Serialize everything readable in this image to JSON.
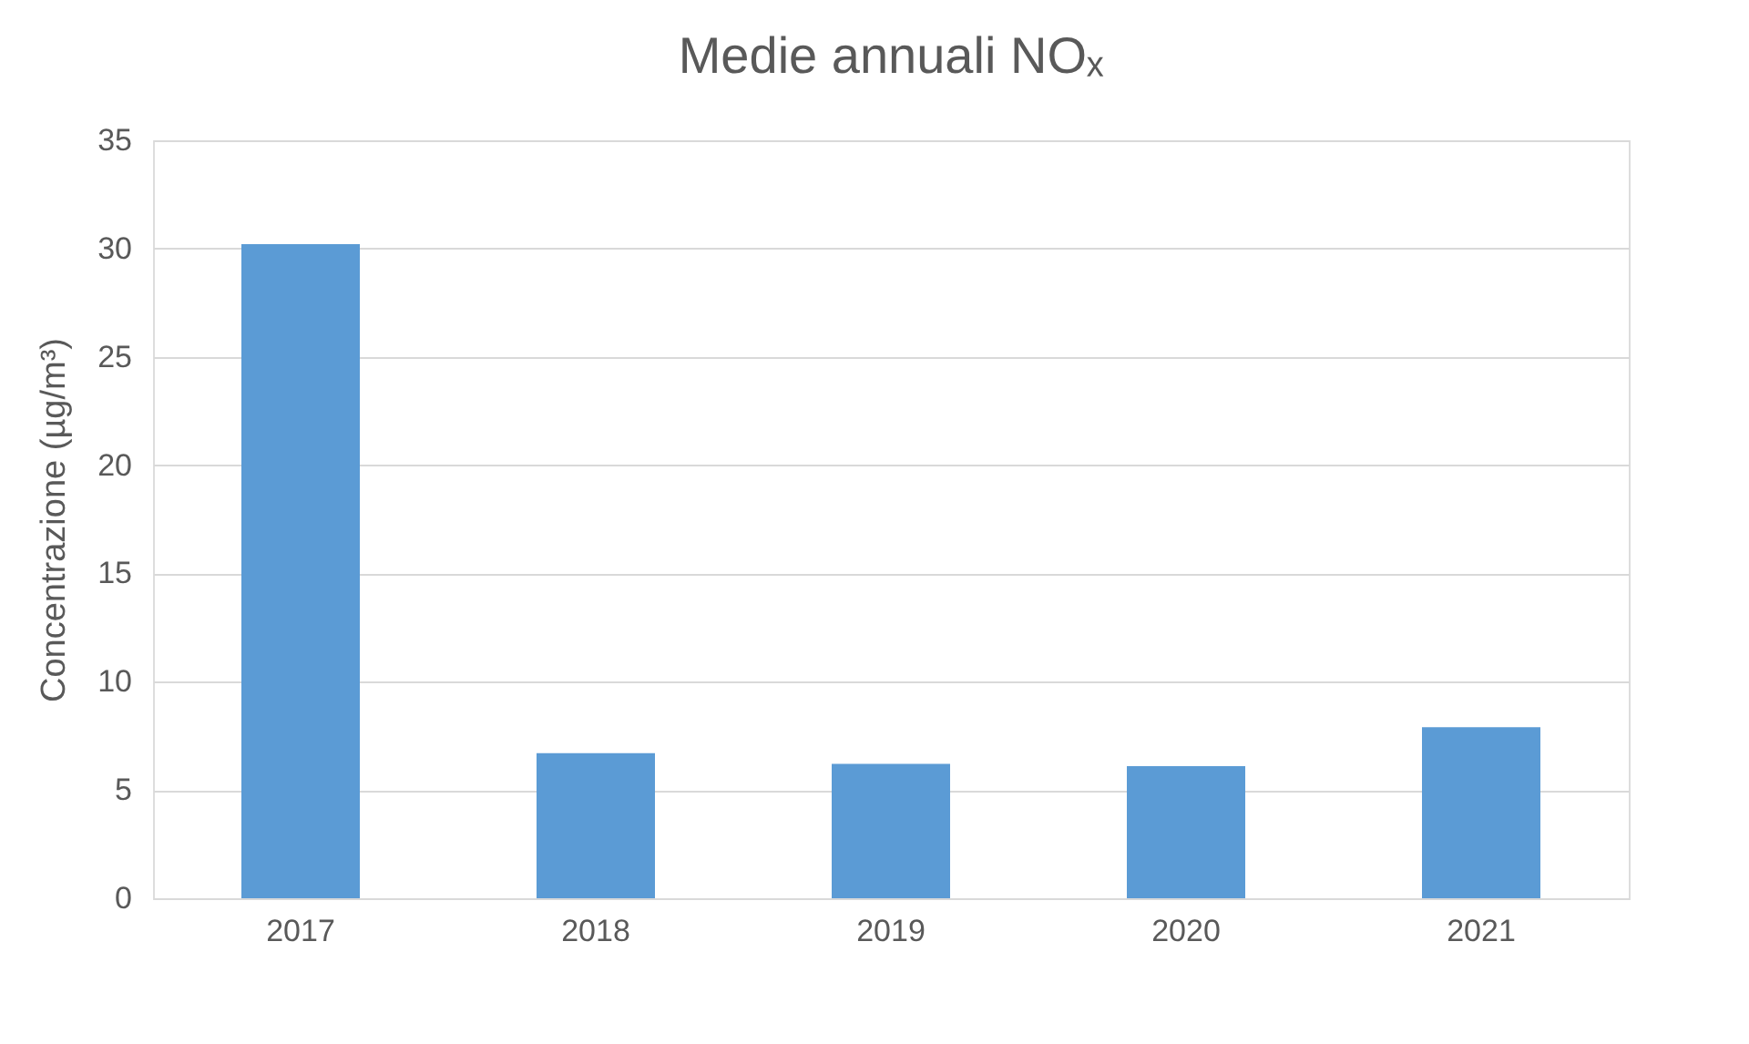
{
  "chart_data": {
    "type": "bar",
    "title": "Medie annuali NOₓ",
    "ylabel": "Concentrazione (µg/m³)",
    "categories": [
      "2017",
      "2018",
      "2019",
      "2020",
      "2021"
    ],
    "values": [
      30.2,
      6.7,
      6.2,
      6.1,
      7.9
    ],
    "color": "#5b9bd5",
    "ylim": [
      0,
      35
    ],
    "yticks": [
      0,
      5,
      10,
      15,
      20,
      25,
      30,
      35
    ],
    "grid": "y"
  }
}
